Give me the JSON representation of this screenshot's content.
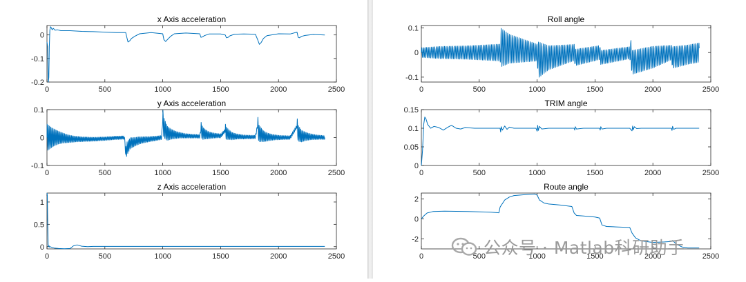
{
  "colors": {
    "line": "#0072BD",
    "axis": "#262626",
    "tick_text": "#262626",
    "background": "#ffffff"
  },
  "watermark": {
    "icon": "wechat-icon",
    "text": "公众号 · Matlab科研助手"
  },
  "chart_data": [
    {
      "id": "x-accel",
      "type": "line",
      "title": "x  Axis acceleration",
      "xlabel": "",
      "ylabel": "",
      "xlim": [
        0,
        2500
      ],
      "ylim": [
        -0.2,
        0.04
      ],
      "xticks": [
        0,
        500,
        1000,
        1500,
        2000,
        2500
      ],
      "yticks": [
        -0.2,
        -0.1,
        0
      ],
      "ytick_labels": [
        "-0.2",
        "-0.1",
        "0"
      ],
      "series": [
        {
          "x": [
            0,
            6,
            12,
            16,
            20,
            25,
            30,
            38,
            45,
            55,
            70,
            90,
            120,
            200,
            300,
            400,
            500,
            600,
            680,
            690,
            700,
            715,
            730,
            760,
            800,
            900,
            1000,
            1010,
            1025,
            1040,
            1070,
            1100,
            1200,
            1320,
            1330,
            1345,
            1360,
            1400,
            1500,
            1540,
            1550,
            1565,
            1580,
            1620,
            1700,
            1800,
            1820,
            1835,
            1850,
            1870,
            1900,
            2000,
            2100,
            2160,
            2170,
            2180,
            2200,
            2230,
            2300,
            2400
          ],
          "y": [
            -0.03,
            -0.05,
            -0.2,
            -0.18,
            -0.05,
            0.02,
            0.035,
            0.03,
            0.022,
            0.028,
            0.02,
            0.022,
            0.018,
            0.018,
            0.015,
            0.014,
            0.012,
            0.01,
            0.01,
            -0.01,
            -0.03,
            -0.025,
            -0.015,
            -0.005,
            0.005,
            0.01,
            0.005,
            -0.02,
            -0.028,
            -0.02,
            -0.005,
            0.005,
            0.008,
            0.005,
            -0.01,
            -0.008,
            -0.003,
            0.004,
            0.004,
            0.0,
            -0.012,
            -0.01,
            -0.004,
            0.003,
            0.004,
            0.003,
            -0.02,
            -0.04,
            -0.032,
            -0.015,
            -0.003,
            0.005,
            0.004,
            0.012,
            -0.01,
            -0.012,
            -0.006,
            -0.002,
            0.002,
            0.0
          ]
        }
      ]
    },
    {
      "id": "y-accel",
      "type": "line",
      "title": "y  Axis acceleration",
      "xlabel": "",
      "ylabel": "",
      "xlim": [
        0,
        2500
      ],
      "ylim": [
        -0.1,
        0.1
      ],
      "xticks": [
        0,
        500,
        1000,
        1500,
        2000,
        2500
      ],
      "yticks": [
        -0.1,
        0,
        0.1
      ],
      "ytick_labels": [
        "-0.1",
        "0",
        "0.1"
      ],
      "series": [
        {
          "oscillation": {
            "period": 10,
            "events": [
              {
                "x": 0,
                "amp": 0.045,
                "decay": 110,
                "offset": 0.0
              },
              {
                "x": 680,
                "amp": 0.02,
                "decay": 120,
                "offset": -0.008
              },
              {
                "x": 1000,
                "amp": 0.035,
                "decay": 70,
                "offset": 0.004
              },
              {
                "x": 1330,
                "amp": 0.022,
                "decay": 60,
                "offset": 0.003
              },
              {
                "x": 1540,
                "amp": 0.02,
                "decay": 60,
                "offset": 0.003
              },
              {
                "x": 1820,
                "amp": 0.03,
                "decay": 70,
                "offset": 0.0
              },
              {
                "x": 2160,
                "amp": 0.028,
                "decay": 70,
                "offset": 0.0
              }
            ]
          },
          "x": [
            0,
            100,
            200,
            300,
            400,
            500,
            600,
            670,
            680,
            690,
            720,
            800,
            900,
            990,
            1000,
            1010,
            1040,
            1100,
            1200,
            1320,
            1330,
            1345,
            1400,
            1500,
            1540,
            1550,
            1600,
            1700,
            1800,
            1820,
            1830,
            1870,
            1900,
            2000,
            2100,
            2160,
            2170,
            2200,
            2300,
            2400
          ],
          "y": [
            0.0,
            0.0,
            -0.005,
            -0.006,
            -0.006,
            -0.004,
            -0.001,
            0.0,
            -0.06,
            -0.04,
            -0.02,
            -0.01,
            -0.005,
            0.0,
            0.065,
            0.035,
            0.015,
            0.01,
            0.006,
            0.004,
            0.03,
            0.015,
            0.008,
            0.006,
            0.025,
            0.015,
            0.005,
            0.002,
            0.002,
            0.045,
            0.015,
            0.005,
            0.002,
            0.0,
            0.0,
            0.04,
            0.015,
            0.005,
            0.002,
            0.0
          ]
        }
      ]
    },
    {
      "id": "z-accel",
      "type": "line",
      "title": "z  Axis acceleration",
      "xlabel": "",
      "ylabel": "",
      "xlim": [
        0,
        2500
      ],
      "ylim": [
        -0.05,
        1.2
      ],
      "xticks": [
        0,
        500,
        1000,
        1500,
        2000,
        2500
      ],
      "yticks": [
        0,
        0.5,
        1
      ],
      "ytick_labels": [
        "0",
        "0.5",
        "1"
      ],
      "series": [
        {
          "x": [
            0,
            3,
            6,
            10,
            14,
            18,
            22,
            30,
            45,
            60,
            100,
            150,
            200,
            230,
            260,
            300,
            350,
            400,
            600,
            1000,
            1500,
            2000,
            2400
          ],
          "y": [
            1.2,
            1.15,
            0.6,
            0.05,
            0.0,
            0.02,
            -0.01,
            0.0,
            -0.02,
            -0.03,
            -0.04,
            -0.045,
            -0.04,
            0.02,
            0.04,
            0.01,
            0.0,
            0.005,
            0.005,
            0.005,
            0.005,
            0.005,
            0.005
          ]
        }
      ]
    },
    {
      "id": "roll",
      "type": "line",
      "title": "Roll angle",
      "xlabel": "",
      "ylabel": "",
      "xlim": [
        0,
        2500
      ],
      "ylim": [
        -0.12,
        0.11
      ],
      "xticks": [
        0,
        500,
        1000,
        1500,
        2000,
        2500
      ],
      "yticks": [
        -0.1,
        0,
        0.1
      ],
      "ytick_labels": [
        "-0.1",
        "0",
        "0.1"
      ],
      "series": [
        {
          "oscillation": {
            "period": 14,
            "amplitude_envelope": {
              "x": [
                0,
                150,
                400,
                680,
                690,
                760,
                1000,
                1010,
                1100,
                1300,
                1500,
                1800,
                1810,
                2000,
                2160,
                2170,
                2300,
                2400
              ],
              "a": [
                0.02,
                0.025,
                0.028,
                0.035,
                0.08,
                0.06,
                0.035,
                0.075,
                0.05,
                0.035,
                0.03,
                0.025,
                0.05,
                0.045,
                0.03,
                0.045,
                0.04,
                0.04
              ]
            }
          },
          "x": [
            0,
            680,
            690,
            1000,
            1010,
            1320,
            1330,
            1540,
            1550,
            1810,
            1820,
            2160,
            2170,
            2400
          ],
          "y": [
            0.0,
            0.0,
            0.02,
            0.0,
            -0.03,
            0.0,
            -0.02,
            0.0,
            -0.02,
            0.0,
            -0.04,
            0.0,
            -0.02,
            0.0
          ]
        }
      ]
    },
    {
      "id": "trim",
      "type": "line",
      "title": "TRIM angle",
      "xlabel": "",
      "ylabel": "",
      "xlim": [
        0,
        2500
      ],
      "ylim": [
        0,
        0.15
      ],
      "xticks": [
        0,
        500,
        1000,
        1500,
        2000,
        2500
      ],
      "yticks": [
        0,
        0.05,
        0.1,
        0.15
      ],
      "ytick_labels": [
        "0",
        "0.05",
        "0.1",
        "0.15"
      ],
      "series": [
        {
          "x": [
            0,
            10,
            20,
            30,
            40,
            55,
            80,
            110,
            150,
            190,
            230,
            260,
            300,
            340,
            380,
            420,
            460,
            520,
            600,
            680,
            685,
            690,
            700,
            720,
            740,
            760,
            800,
            900,
            990,
            1000,
            1005,
            1010,
            1020,
            1040,
            1100,
            1200,
            1320,
            1325,
            1330,
            1340,
            1400,
            1500,
            1540,
            1545,
            1550,
            1560,
            1600,
            1700,
            1800,
            1820,
            1825,
            1830,
            1840,
            1860,
            1900,
            2000,
            2100,
            2160,
            2165,
            2170,
            2180,
            2200,
            2300,
            2400
          ],
          "y": [
            0.0,
            0.04,
            0.11,
            0.13,
            0.125,
            0.11,
            0.1,
            0.105,
            0.102,
            0.095,
            0.103,
            0.108,
            0.1,
            0.098,
            0.102,
            0.101,
            0.1,
            0.1,
            0.1,
            0.1,
            0.09,
            0.104,
            0.095,
            0.106,
            0.097,
            0.103,
            0.1,
            0.1,
            0.1,
            0.092,
            0.108,
            0.094,
            0.105,
            0.098,
            0.1,
            0.1,
            0.1,
            0.095,
            0.104,
            0.098,
            0.1,
            0.1,
            0.1,
            0.095,
            0.104,
            0.098,
            0.1,
            0.1,
            0.1,
            0.093,
            0.106,
            0.096,
            0.104,
            0.099,
            0.1,
            0.1,
            0.1,
            0.1,
            0.094,
            0.105,
            0.097,
            0.1,
            0.1,
            0.1
          ]
        }
      ]
    },
    {
      "id": "route",
      "type": "line",
      "title": "Route angle",
      "xlabel": "",
      "ylabel": "",
      "xlim": [
        0,
        2500
      ],
      "ylim": [
        -3,
        2.6
      ],
      "xticks": [
        0,
        500,
        1000,
        1500,
        2000,
        2500
      ],
      "yticks": [
        -2,
        0,
        2
      ],
      "ytick_labels": [
        "-2",
        "0",
        "2"
      ],
      "series": [
        {
          "x": [
            0,
            20,
            50,
            100,
            200,
            300,
            400,
            500,
            600,
            670,
            680,
            720,
            760,
            800,
            900,
            980,
            1000,
            1020,
            1060,
            1100,
            1200,
            1300,
            1320,
            1340,
            1400,
            1500,
            1540,
            1560,
            1600,
            1700,
            1800,
            1820,
            1850,
            1900,
            2000,
            2100,
            2160,
            2170,
            2200,
            2250,
            2300,
            2350,
            2400
          ],
          "y": [
            0.0,
            0.3,
            0.6,
            0.75,
            0.78,
            0.77,
            0.75,
            0.72,
            0.68,
            0.62,
            1.2,
            1.9,
            2.2,
            2.35,
            2.45,
            2.5,
            2.4,
            1.9,
            1.6,
            1.5,
            1.4,
            1.25,
            0.6,
            0.35,
            0.3,
            0.2,
            0.1,
            -0.6,
            -0.75,
            -0.8,
            -0.85,
            -1.4,
            -1.9,
            -2.2,
            -2.35,
            -2.3,
            -2.25,
            -2.15,
            -2.5,
            -2.8,
            -2.9,
            -2.9,
            -2.9
          ]
        }
      ]
    }
  ]
}
